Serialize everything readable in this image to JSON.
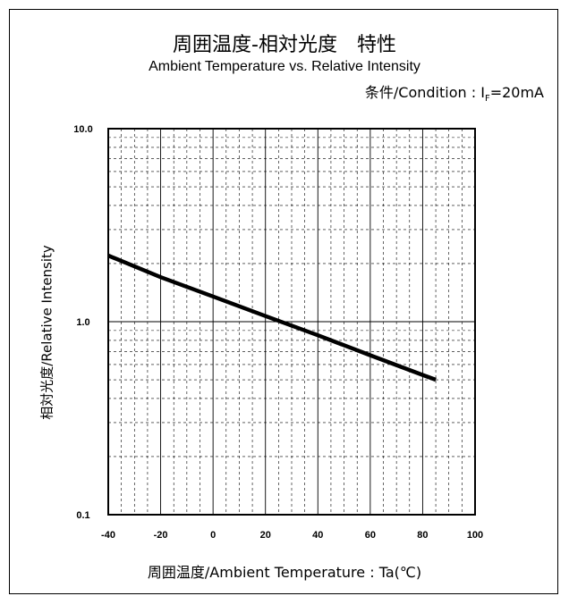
{
  "titles": {
    "jp": "周囲温度-相対光度　特性",
    "en": "Ambient Temperature vs. Relative Intensity",
    "condition_prefix": "条件/Condition : I",
    "condition_sub": "F",
    "condition_suffix": "=20mA"
  },
  "chart_data": {
    "type": "line",
    "ylabel": "相対光度/Relative Intensity",
    "xlabel": "周囲温度/Ambient Temperature : Ta(℃)",
    "xlim": [
      -40,
      100
    ],
    "ylim": [
      0.1,
      10.0
    ],
    "yscale": "log",
    "grid": true,
    "x_ticks": [
      "-40",
      "-20",
      "0",
      "20",
      "40",
      "60",
      "80",
      "100"
    ],
    "y_ticks": [
      "0.1",
      "1.0",
      "10.0"
    ],
    "series": [
      {
        "x": [
          -40,
          -20,
          0,
          20,
          40,
          60,
          80,
          85
        ],
        "y": [
          2.2,
          1.7,
          1.35,
          1.07,
          0.85,
          0.67,
          0.53,
          0.5
        ]
      }
    ]
  }
}
